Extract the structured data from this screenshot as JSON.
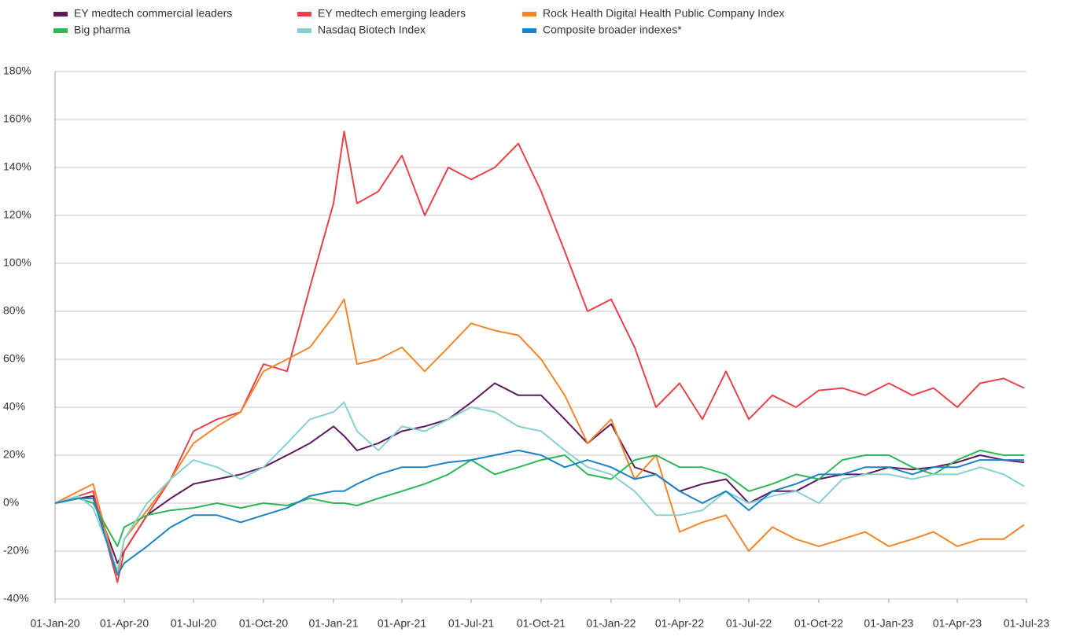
{
  "chart_data": {
    "type": "line",
    "x": [
      "2020-01-01",
      "2020-02-01",
      "2020-02-20",
      "2020-03-23",
      "2020-04-01",
      "2020-05-01",
      "2020-06-01",
      "2020-07-01",
      "2020-08-01",
      "2020-09-01",
      "2020-10-01",
      "2020-11-01",
      "2020-12-01",
      "2021-01-01",
      "2021-01-15",
      "2021-02-01",
      "2021-03-01",
      "2021-04-01",
      "2021-05-01",
      "2021-06-01",
      "2021-07-01",
      "2021-08-01",
      "2021-09-01",
      "2021-10-01",
      "2021-11-01",
      "2021-12-01",
      "2022-01-01",
      "2022-02-01",
      "2022-03-01",
      "2022-04-01",
      "2022-05-01",
      "2022-06-01",
      "2022-07-01",
      "2022-08-01",
      "2022-09-01",
      "2022-10-01",
      "2022-11-01",
      "2022-12-01",
      "2023-01-01",
      "2023-02-01",
      "2023-03-01",
      "2023-04-01",
      "2023-05-01",
      "2023-06-01",
      "2023-06-28"
    ],
    "series": [
      {
        "name": "EY medtech commercial leaders",
        "color": "#5c1a5c",
        "values": [
          0,
          2,
          3,
          -25,
          -20,
          -5,
          2,
          8,
          10,
          12,
          15,
          20,
          25,
          32,
          28,
          22,
          25,
          30,
          32,
          35,
          42,
          50,
          45,
          45,
          35,
          25,
          33,
          15,
          12,
          5,
          8,
          10,
          0,
          5,
          5,
          10,
          12,
          12,
          15,
          14,
          15,
          17,
          20,
          18,
          17
        ]
      },
      {
        "name": "EY medtech emerging leaders",
        "color": "#e8434b",
        "values": [
          0,
          3,
          5,
          -33,
          -20,
          -5,
          10,
          30,
          35,
          38,
          58,
          55,
          90,
          125,
          155,
          125,
          130,
          145,
          120,
          140,
          135,
          140,
          150,
          130,
          105,
          80,
          85,
          65,
          40,
          50,
          35,
          55,
          35,
          45,
          40,
          47,
          48,
          45,
          50,
          45,
          48,
          40,
          50,
          52,
          48
        ]
      },
      {
        "name": "Rock Health Digital Health Public Company Index",
        "color": "#f2862c",
        "values": [
          0,
          5,
          8,
          -30,
          -15,
          -3,
          10,
          25,
          32,
          38,
          55,
          60,
          65,
          78,
          85,
          58,
          60,
          65,
          55,
          65,
          75,
          72,
          70,
          60,
          45,
          25,
          35,
          10,
          20,
          -12,
          -8,
          -5,
          -20,
          -10,
          -15,
          -18,
          -15,
          -12,
          -18,
          -15,
          -12,
          -18,
          -15,
          -15,
          -9
        ]
      },
      {
        "name": "Big pharma",
        "color": "#2db757",
        "values": [
          0,
          2,
          0,
          -18,
          -10,
          -5,
          -3,
          -2,
          0,
          -2,
          0,
          -1,
          2,
          0,
          0,
          -1,
          2,
          5,
          8,
          12,
          18,
          12,
          15,
          18,
          20,
          12,
          10,
          18,
          20,
          15,
          15,
          12,
          5,
          8,
          12,
          10,
          18,
          20,
          20,
          15,
          12,
          18,
          22,
          20,
          20
        ]
      },
      {
        "name": "Nasdaq Biotech Index",
        "color": "#87d0d0",
        "values": [
          0,
          3,
          -2,
          -28,
          -15,
          0,
          10,
          18,
          15,
          10,
          15,
          25,
          35,
          38,
          42,
          30,
          22,
          32,
          30,
          35,
          40,
          38,
          32,
          30,
          22,
          15,
          12,
          5,
          -5,
          -5,
          -3,
          5,
          0,
          3,
          5,
          0,
          10,
          12,
          12,
          10,
          12,
          12,
          15,
          12,
          7
        ]
      },
      {
        "name": "Composite broader indexes*",
        "color": "#1a83c4",
        "values": [
          0,
          2,
          2,
          -30,
          -25,
          -18,
          -10,
          -5,
          -5,
          -8,
          -5,
          -2,
          3,
          5,
          5,
          8,
          12,
          15,
          15,
          17,
          18,
          20,
          22,
          20,
          15,
          18,
          15,
          10,
          12,
          5,
          0,
          5,
          -3,
          5,
          8,
          12,
          12,
          15,
          15,
          12,
          15,
          15,
          18,
          18,
          18
        ]
      }
    ],
    "xlim": [
      "2020-01-01",
      "2023-07-01"
    ],
    "xticks": [
      {
        "value": "2020-01-01",
        "label": "01-Jan-20"
      },
      {
        "value": "2020-04-01",
        "label": "01-Apr-20"
      },
      {
        "value": "2020-07-01",
        "label": "01-Jul-20"
      },
      {
        "value": "2020-10-01",
        "label": "01-Oct-20"
      },
      {
        "value": "2021-01-01",
        "label": "01-Jan-21"
      },
      {
        "value": "2021-04-01",
        "label": "01-Apr-21"
      },
      {
        "value": "2021-07-01",
        "label": "01-Jul-21"
      },
      {
        "value": "2021-10-01",
        "label": "01-Oct-21"
      },
      {
        "value": "2022-01-01",
        "label": "01-Jan-22"
      },
      {
        "value": "2022-04-01",
        "label": "01-Apr-22"
      },
      {
        "value": "2022-07-01",
        "label": "01-Jul-22"
      },
      {
        "value": "2022-10-01",
        "label": "01-Oct-22"
      },
      {
        "value": "2023-01-01",
        "label": "01-Jan-23"
      },
      {
        "value": "2023-04-01",
        "label": "01-Apr-23"
      },
      {
        "value": "2023-07-01",
        "label": "01-Jul-23"
      }
    ],
    "ylim": [
      -40,
      180
    ],
    "yticks": [
      {
        "value": -40,
        "label": "-40%"
      },
      {
        "value": -20,
        "label": "-20%"
      },
      {
        "value": 0,
        "label": "0%"
      },
      {
        "value": 20,
        "label": "20%"
      },
      {
        "value": 40,
        "label": "40%"
      },
      {
        "value": 60,
        "label": "60%"
      },
      {
        "value": 80,
        "label": "80%"
      },
      {
        "value": 100,
        "label": "100%"
      },
      {
        "value": 120,
        "label": "120%"
      },
      {
        "value": 140,
        "label": "140%"
      },
      {
        "value": 160,
        "label": "160%"
      },
      {
        "value": 180,
        "label": "180%"
      }
    ],
    "grid": true,
    "legend": "top-left"
  }
}
